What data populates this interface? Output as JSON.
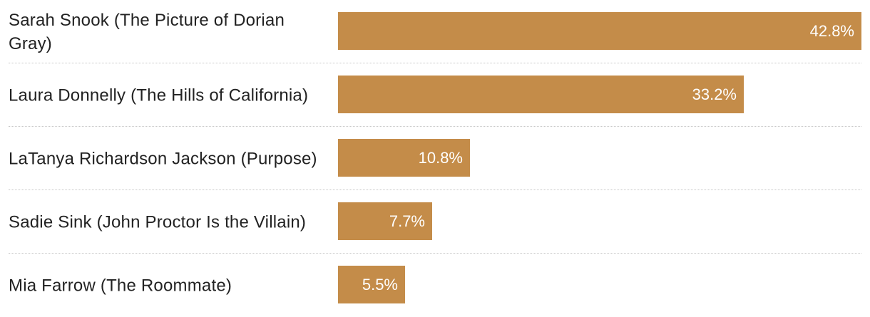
{
  "chart_data": {
    "type": "bar",
    "orientation": "horizontal",
    "categories": [
      "Sarah Snook (The Picture of Dorian Gray)",
      "Laura Donnelly (The Hills of California)",
      "LaTanya Richardson Jackson (Purpose)",
      "Sadie Sink (John Proctor Is the Villain)",
      "Mia Farrow (The Roommate)"
    ],
    "values": [
      42.8,
      33.2,
      10.8,
      7.7,
      5.5
    ],
    "value_labels": [
      "42.8%",
      "33.2%",
      "10.8%",
      "7.7%",
      "5.5%"
    ],
    "unit": "%",
    "bar_color": "#c48c49",
    "xlim": [
      0,
      42.8
    ],
    "grid": false
  }
}
